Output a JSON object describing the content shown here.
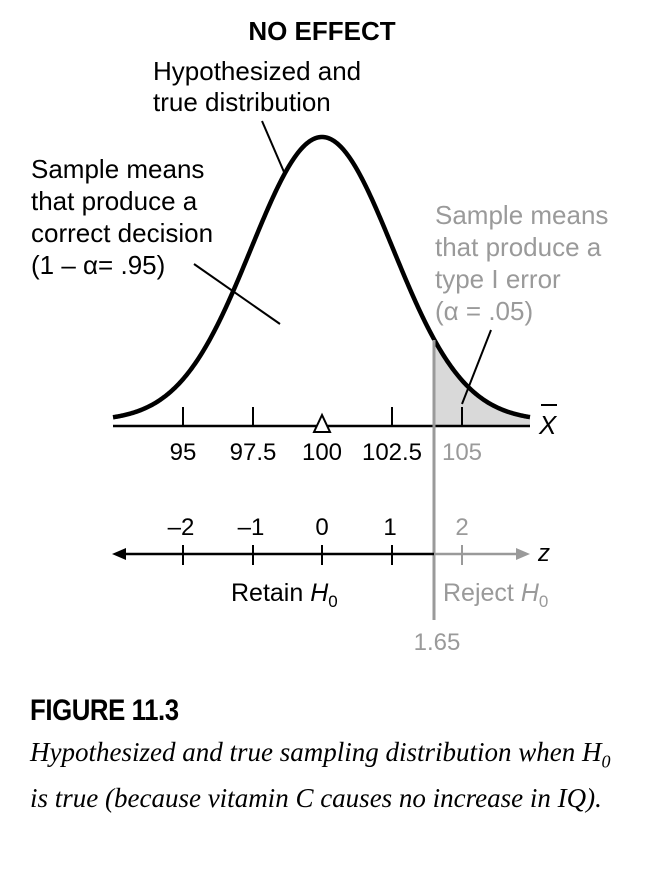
{
  "title": "NO EFFECT",
  "labels": {
    "distribution_line1": "Hypothesized and",
    "distribution_line2": "true distribution",
    "correct_line1": "Sample means",
    "correct_line2": "that produce a",
    "correct_line3": "correct decision",
    "correct_line4": "(1 – α= .95)",
    "error_line1": "Sample means",
    "error_line2": "that produce a",
    "error_line3": "type I error",
    "error_line4": "(α = .05)"
  },
  "x_axis": {
    "symbol": "X",
    "ticks": [
      "95",
      "97.5",
      "100",
      "102.5",
      "105"
    ]
  },
  "z_axis": {
    "symbol": "z",
    "ticks": [
      "–2",
      "–1",
      "0",
      "1",
      "2"
    ],
    "critical_value": "1.65",
    "retain_label": "Retain ",
    "reject_label": "Reject ",
    "h_symbol": "H",
    "h_subscript": "0"
  },
  "caption": {
    "title": "FIGURE 11.3",
    "text_part1": "Hypothesized and true sampling distribution when ",
    "h_symbol": "H",
    "h_subscript": "0",
    "text_part2": " is true (because vitamin C causes no increase in IQ)."
  },
  "colors": {
    "black": "#000000",
    "gray": "#9a9a9a",
    "shade": "#d9d9d9"
  }
}
